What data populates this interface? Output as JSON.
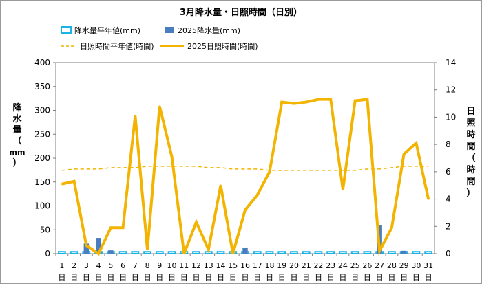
{
  "chart_data": {
    "type": "bar+line",
    "title": "3月降水量・日照時間（日別）",
    "categories": [
      "1",
      "2",
      "3",
      "4",
      "5",
      "6",
      "7",
      "8",
      "9",
      "10",
      "11",
      "12",
      "13",
      "14",
      "15",
      "16",
      "17",
      "18",
      "19",
      "20",
      "21",
      "22",
      "23",
      "24",
      "25",
      "26",
      "27",
      "28",
      "29",
      "30",
      "31"
    ],
    "category_suffix": "日",
    "y_left": {
      "label_chars": [
        "降",
        "水",
        "量",
        "（",
        "mm",
        "）"
      ],
      "ylim": [
        0,
        400
      ],
      "ticks": [
        0,
        50,
        100,
        150,
        200,
        250,
        300,
        350,
        400
      ]
    },
    "y_right": {
      "label_chars": [
        "日",
        "照",
        "時",
        "間",
        "（",
        "時",
        "間",
        "）"
      ],
      "ylim": [
        0,
        14
      ],
      "ticks": [
        0,
        2,
        4,
        6,
        8,
        10,
        12,
        14
      ]
    },
    "legend": [
      {
        "label": "降水量平年値(mm)",
        "kind": "hollow-bar",
        "color": "#1ab3e6"
      },
      {
        "label": "2025降水量(mm)",
        "kind": "bar",
        "color": "#4a7dbf"
      },
      {
        "label": "日照時間平年値(時間)",
        "kind": "dashed-line",
        "color": "#f2b400"
      },
      {
        "label": "2025日照時間(時間)",
        "kind": "line",
        "color": "#f2b400"
      }
    ],
    "series": [
      {
        "name": "降水量平年値(mm)",
        "axis": "left",
        "type": "bar",
        "style": "hollow",
        "values": [
          4,
          4,
          4,
          4,
          4,
          4,
          4,
          4,
          4,
          4,
          4,
          4,
          4,
          4,
          4,
          4,
          4,
          4,
          4,
          4,
          4,
          4,
          4,
          4,
          4,
          4,
          4,
          4,
          4,
          4,
          4
        ]
      },
      {
        "name": "2025降水量(mm)",
        "axis": "left",
        "type": "bar",
        "values": [
          0,
          0,
          21,
          33,
          7,
          0,
          0,
          0,
          0,
          0,
          0,
          0,
          0,
          0,
          0,
          13,
          0,
          0,
          0,
          0,
          0,
          0,
          0,
          0,
          0,
          0,
          59,
          0,
          6,
          0,
          0
        ]
      },
      {
        "name": "日照時間平年値(時間)",
        "axis": "right",
        "type": "line",
        "style": "dashed",
        "values": [
          6.1,
          6.2,
          6.2,
          6.2,
          6.3,
          6.3,
          6.3,
          6.4,
          6.4,
          6.4,
          6.4,
          6.4,
          6.3,
          6.3,
          6.2,
          6.2,
          6.2,
          6.1,
          6.1,
          6.1,
          6.1,
          6.1,
          6.1,
          6.1,
          6.1,
          6.2,
          6.2,
          6.3,
          6.4,
          6.4,
          6.4
        ]
      },
      {
        "name": "2025日照時間(時間)",
        "axis": "right",
        "type": "line",
        "values": [
          5.1,
          5.3,
          0.6,
          0.0,
          1.9,
          1.9,
          10.1,
          0.3,
          10.8,
          7.1,
          0.0,
          2.3,
          0.3,
          5.0,
          0.0,
          3.2,
          4.3,
          6.0,
          11.1,
          11.0,
          11.1,
          11.3,
          11.3,
          4.7,
          11.2,
          11.3,
          0.2,
          1.9,
          7.3,
          8.1,
          4.0
        ]
      }
    ],
    "colors": {
      "normal_rain": "#1ab3e6",
      "rain": "#4a7dbf",
      "sun": "#f2b400",
      "plot_border": "#7f7f7f"
    }
  }
}
